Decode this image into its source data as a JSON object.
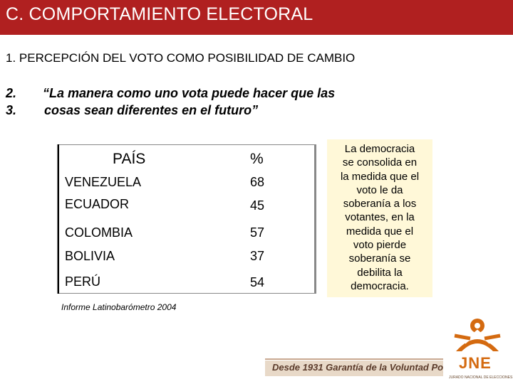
{
  "slide": {
    "title": "C. COMPORTAMIENTO ELECTORAL",
    "heading": "1. PERCEPCIÓN DEL VOTO COMO POSIBILIDAD DE CAMBIO",
    "num_2": "2.",
    "num_3": "3.",
    "quote_line_1": "“La manera como uno vota puede hacer que las",
    "quote_line_2": "cosas sean diferentes en el futuro”"
  },
  "table": {
    "header_country": "PAÍS",
    "header_percent": "%",
    "rows": [
      {
        "country": "VENEZUELA",
        "value": "68"
      },
      {
        "country": "ECUADOR",
        "value": "45"
      },
      {
        "country": "COLOMBIA",
        "value": "57"
      },
      {
        "country": "BOLIVIA",
        "value": "37"
      },
      {
        "country": "PERÚ",
        "value": "54"
      }
    ]
  },
  "side_note": {
    "lines": [
      "La democracia",
      "se consolida en",
      "la medida que el",
      "voto le da",
      "soberanía a los",
      "votantes, en la",
      "medida que el",
      "voto pierde",
      "soberanía se",
      "debilita la",
      "democracia."
    ]
  },
  "source": "Informe Latinobarómetro 2004",
  "footer": {
    "slogan": "Desde 1931 Garantía de la Voluntad Popular",
    "logo_text": "JNE",
    "logo_subtext": "JURADO NACIONAL DE ELECCIONES"
  },
  "colors": {
    "title_bar": "#b02020",
    "note_background": "#fff8d8",
    "logo_orange": "#d46a10"
  }
}
